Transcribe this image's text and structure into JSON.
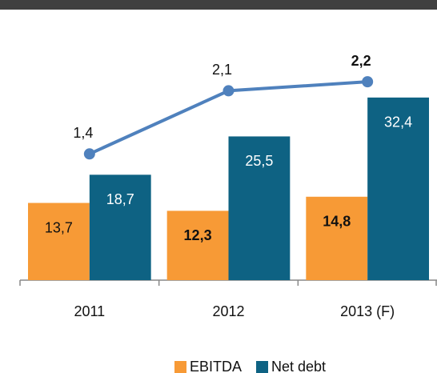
{
  "chart_data": {
    "type": "bar",
    "categories": [
      "2011",
      "2012",
      "2013 (F)"
    ],
    "series": [
      {
        "name": "EBITDA",
        "color": "#f79a36",
        "values": [
          13.7,
          12.3,
          14.8
        ],
        "value_labels": [
          "13,7",
          "12,3",
          "14,8"
        ],
        "bold": [
          false,
          true,
          true
        ]
      },
      {
        "name": "Net debt",
        "color": "#0e6283",
        "values": [
          18.7,
          25.5,
          32.4
        ],
        "value_labels": [
          "18,7",
          "25,5",
          "32,4"
        ],
        "bold": [
          false,
          false,
          false
        ]
      },
      {
        "name": null,
        "type": "line",
        "axis": "y2",
        "color": "#4f81bd",
        "values": [
          1.4,
          2.1,
          2.2
        ],
        "value_labels": [
          "1,4",
          "2,1",
          "2,2"
        ],
        "bold": [
          false,
          false,
          true
        ]
      }
    ],
    "ylim": [
      0,
      48
    ],
    "y2lim": [
      0,
      3
    ],
    "legend": "bottom"
  }
}
